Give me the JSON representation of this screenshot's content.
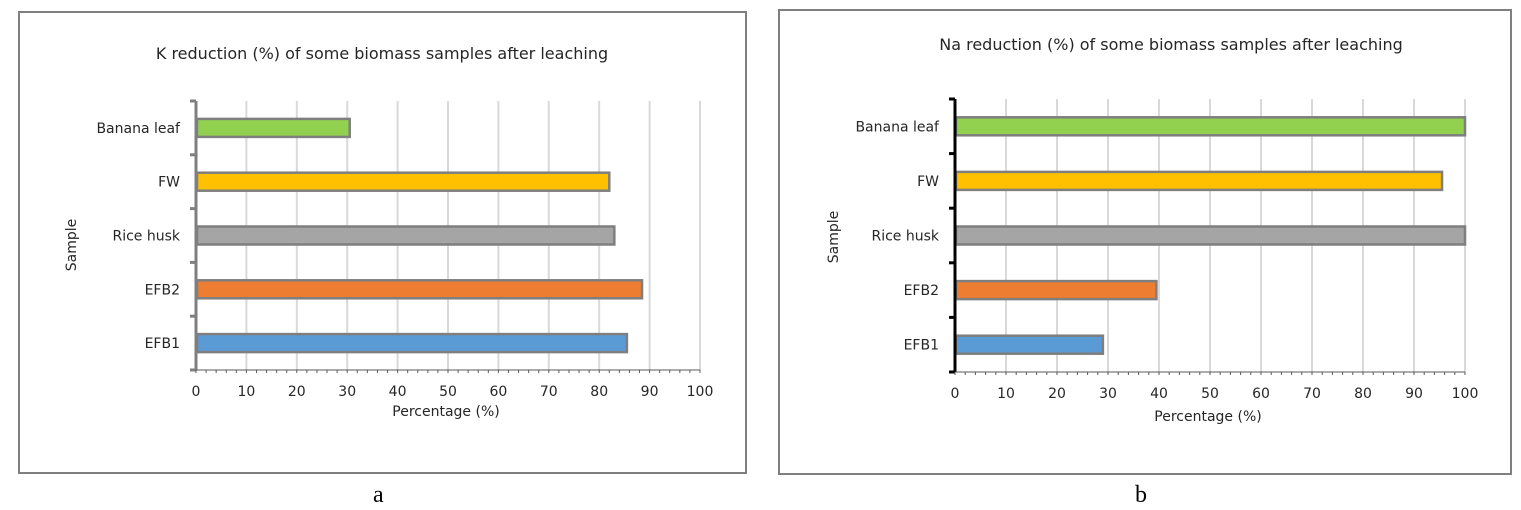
{
  "chart_data": [
    {
      "type": "bar",
      "orientation": "horizontal",
      "title": "K reduction (%) of some biomass samples after leaching",
      "xlabel": "Percentage (%)",
      "ylabel": "Sample",
      "categories": [
        "Banana leaf",
        "FW",
        "Rice husk",
        "EFB2",
        "EFB1"
      ],
      "values": [
        30.5,
        82,
        83,
        88.5,
        85.5
      ],
      "colors": [
        "#92d050",
        "#ffc000",
        "#a5a5a5",
        "#ed7d31",
        "#5b9bd5"
      ],
      "xlim": [
        0,
        100
      ],
      "xticks": [
        "0",
        "10",
        "20",
        "30",
        "40",
        "50",
        "60",
        "70",
        "80",
        "90",
        "100"
      ],
      "grid": true,
      "caption": "a"
    },
    {
      "type": "bar",
      "orientation": "horizontal",
      "title": "Na reduction (%) of some biomass samples after leaching",
      "xlabel": "Percentage (%)",
      "ylabel": "Sample",
      "categories": [
        "Banana leaf",
        "FW",
        "Rice husk",
        "EFB2",
        "EFB1"
      ],
      "values": [
        100,
        95.5,
        100,
        39.5,
        29
      ],
      "colors": [
        "#92d050",
        "#ffc000",
        "#a5a5a5",
        "#ed7d31",
        "#5b9bd5"
      ],
      "xlim": [
        0,
        100
      ],
      "xticks": [
        "0",
        "10",
        "20",
        "30",
        "40",
        "50",
        "60",
        "70",
        "80",
        "90",
        "100"
      ],
      "grid": true,
      "caption": "b"
    }
  ]
}
